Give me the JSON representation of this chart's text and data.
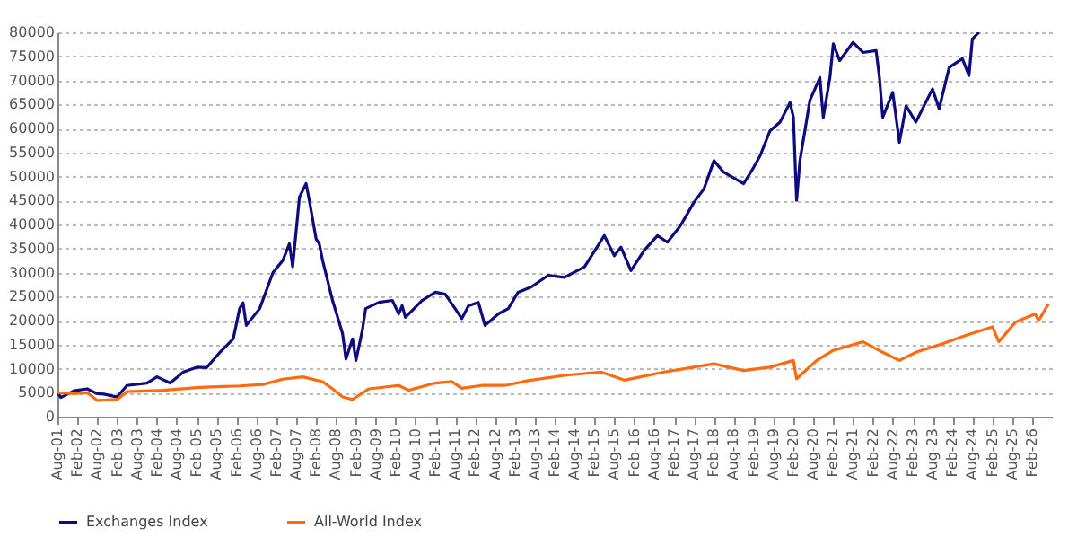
{
  "chart_data": {
    "type": "line",
    "xlim": [
      "2001-08",
      "2026-08"
    ],
    "ylim": [
      0,
      80000
    ],
    "yticks": [
      0,
      5000,
      10000,
      15000,
      20000,
      25000,
      30000,
      35000,
      40000,
      45000,
      50000,
      55000,
      60000,
      65000,
      70000,
      75000,
      80000
    ],
    "xticks": [
      {
        "value": "2001-08",
        "label": "Aug-01"
      },
      {
        "value": "2002-02",
        "label": "Feb-02"
      },
      {
        "value": "2002-08",
        "label": "Aug-02"
      },
      {
        "value": "2003-02",
        "label": "Feb-03"
      },
      {
        "value": "2003-08",
        "label": "Aug-03"
      },
      {
        "value": "2004-02",
        "label": "Feb-04"
      },
      {
        "value": "2004-08",
        "label": "Aug-04"
      },
      {
        "value": "2005-02",
        "label": "Feb-05"
      },
      {
        "value": "2005-08",
        "label": "Aug-05"
      },
      {
        "value": "2006-02",
        "label": "Feb-06"
      },
      {
        "value": "2006-08",
        "label": "Aug-06"
      },
      {
        "value": "2007-02",
        "label": "Feb-07"
      },
      {
        "value": "2007-08",
        "label": "Aug-07"
      },
      {
        "value": "2008-02",
        "label": "Feb-08"
      },
      {
        "value": "2008-08",
        "label": "Aug-08"
      },
      {
        "value": "2009-02",
        "label": "Feb-09"
      },
      {
        "value": "2009-08",
        "label": "Aug-09"
      },
      {
        "value": "2010-02",
        "label": "Feb-10"
      },
      {
        "value": "2010-08",
        "label": "Aug-10"
      },
      {
        "value": "2011-02",
        "label": "Feb-11"
      },
      {
        "value": "2011-08",
        "label": "Aug-11"
      },
      {
        "value": "2012-02",
        "label": "Feb-12"
      },
      {
        "value": "2012-08",
        "label": "Aug-12"
      },
      {
        "value": "2013-02",
        "label": "Feb-13"
      },
      {
        "value": "2013-08",
        "label": "Aug-13"
      },
      {
        "value": "2014-02",
        "label": "Feb-14"
      },
      {
        "value": "2014-08",
        "label": "Aug-14"
      },
      {
        "value": "2015-02",
        "label": "Feb-15"
      },
      {
        "value": "2015-08",
        "label": "Aug-15"
      },
      {
        "value": "2016-02",
        "label": "Feb-16"
      },
      {
        "value": "2016-08",
        "label": "Aug-16"
      },
      {
        "value": "2017-02",
        "label": "Feb-17"
      },
      {
        "value": "2017-08",
        "label": "Aug-17"
      },
      {
        "value": "2018-02",
        "label": "Feb-18"
      },
      {
        "value": "2018-08",
        "label": "Aug-18"
      },
      {
        "value": "2019-02",
        "label": "Feb-19"
      },
      {
        "value": "2019-08",
        "label": "Aug-19"
      },
      {
        "value": "2020-02",
        "label": "Feb-20"
      },
      {
        "value": "2020-08",
        "label": "Aug-20"
      },
      {
        "value": "2021-02",
        "label": "Feb-21"
      },
      {
        "value": "2021-08",
        "label": "Aug-21"
      },
      {
        "value": "2022-02",
        "label": "Feb-22"
      },
      {
        "value": "2022-08",
        "label": "Aug-22"
      },
      {
        "value": "2023-02",
        "label": "Feb-23"
      },
      {
        "value": "2023-08",
        "label": "Aug-23"
      },
      {
        "value": "2024-02",
        "label": "Feb-24"
      },
      {
        "value": "2024-08",
        "label": "Aug-24"
      },
      {
        "value": "2025-02",
        "label": "Feb-25"
      },
      {
        "value": "2025-08",
        "label": "Aug-25"
      },
      {
        "value": "2026-02",
        "label": "Feb-26"
      }
    ],
    "grid": "y",
    "legend": "bottom",
    "series": [
      {
        "name": "Exchanges Index",
        "color": "#0c0c7e",
        "x": [
          "2001-08",
          "2001-09",
          "2002-01",
          "2002-05",
          "2002-08",
          "2002-10",
          "2003-02",
          "2003-05",
          "2003-11",
          "2004-02",
          "2004-06",
          "2004-10",
          "2005-02",
          "2005-05",
          "2005-09",
          "2006-01",
          "2006-03",
          "2006-04",
          "2006-05",
          "2006-09",
          "2007-01",
          "2007-04",
          "2007-06",
          "2007-07",
          "2007-09",
          "2007-11",
          "2007-12",
          "2008-02",
          "2008-03",
          "2008-04",
          "2008-07",
          "2008-10",
          "2008-11",
          "2009-01",
          "2009-02",
          "2009-04",
          "2009-05",
          "2009-09",
          "2010-01",
          "2010-03",
          "2010-04",
          "2010-05",
          "2010-10",
          "2011-02",
          "2011-05",
          "2011-08",
          "2011-10",
          "2011-12",
          "2012-03",
          "2012-05",
          "2012-09",
          "2012-12",
          "2013-03",
          "2013-07",
          "2013-12",
          "2014-05",
          "2014-11",
          "2015-05",
          "2015-08",
          "2015-10",
          "2016-01",
          "2016-05",
          "2016-09",
          "2016-12",
          "2017-04",
          "2017-08",
          "2017-11",
          "2018-02",
          "2018-05",
          "2018-11",
          "2019-02",
          "2019-04",
          "2019-07",
          "2019-10",
          "2020-01",
          "2020-02",
          "2020-03",
          "2020-04",
          "2020-07",
          "2020-10",
          "2020-11",
          "2021-01",
          "2021-02",
          "2021-04",
          "2021-08",
          "2021-11",
          "2022-03",
          "2022-04",
          "2022-05",
          "2022-08",
          "2022-10",
          "2022-12",
          "2023-03",
          "2023-08",
          "2023-10",
          "2024-01",
          "2024-05",
          "2024-07",
          "2024-08",
          "2024-10"
        ],
        "values": [
          5000,
          4000,
          5400,
          5800,
          4800,
          4700,
          4100,
          6500,
          7000,
          8300,
          7000,
          9300,
          10300,
          10200,
          13400,
          16200,
          22500,
          23700,
          19000,
          22500,
          30000,
          32500,
          36000,
          31200,
          45700,
          48500,
          45000,
          37000,
          36000,
          32500,
          24200,
          17300,
          12000,
          16200,
          11700,
          18000,
          22500,
          23800,
          24200,
          21400,
          23100,
          20700,
          24200,
          25900,
          25500,
          22500,
          20400,
          23100,
          23800,
          19000,
          21400,
          22500,
          25900,
          27000,
          29400,
          29000,
          31200,
          37700,
          33500,
          35300,
          30400,
          34600,
          37700,
          36300,
          39800,
          44600,
          47400,
          53300,
          50900,
          48500,
          51900,
          54300,
          59500,
          61300,
          65400,
          62300,
          45000,
          53300,
          65800,
          70600,
          62300,
          70600,
          77600,
          74100,
          77900,
          75800,
          76200,
          70600,
          62300,
          67500,
          57100,
          64700,
          61300,
          68200,
          64100,
          72700,
          74500,
          71000,
          78600,
          80000
        ]
      },
      {
        "name": "All-World Index",
        "color": "#ff6a0e",
        "x": [
          "2001-08",
          "2002-01",
          "2002-05",
          "2002-08",
          "2003-02",
          "2003-05",
          "2004-04",
          "2005-03",
          "2006-03",
          "2006-10",
          "2007-04",
          "2007-10",
          "2008-04",
          "2008-07",
          "2008-10",
          "2009-01",
          "2009-06",
          "2010-03",
          "2010-06",
          "2011-02",
          "2011-07",
          "2011-10",
          "2012-04",
          "2012-11",
          "2013-06",
          "2014-05",
          "2015-04",
          "2015-11",
          "2016-11",
          "2018-02",
          "2018-11",
          "2019-07",
          "2020-02",
          "2020-03",
          "2020-09",
          "2021-02",
          "2021-11",
          "2022-05",
          "2022-10",
          "2023-03",
          "2023-11",
          "2024-06",
          "2025-02",
          "2025-04",
          "2025-09",
          "2026-03",
          "2026-04",
          "2026-07"
        ],
        "values": [
          5000,
          4800,
          5000,
          3400,
          3600,
          5200,
          5500,
          6100,
          6400,
          6700,
          7800,
          8300,
          7300,
          5800,
          4100,
          3600,
          5800,
          6500,
          5500,
          7000,
          7300,
          5900,
          6500,
          6500,
          7500,
          8600,
          9300,
          7600,
          9300,
          11000,
          9600,
          10300,
          11700,
          7900,
          11700,
          13800,
          15600,
          13400,
          11700,
          13400,
          15200,
          16900,
          18700,
          15600,
          19700,
          21400,
          20000,
          23500
        ]
      }
    ]
  }
}
